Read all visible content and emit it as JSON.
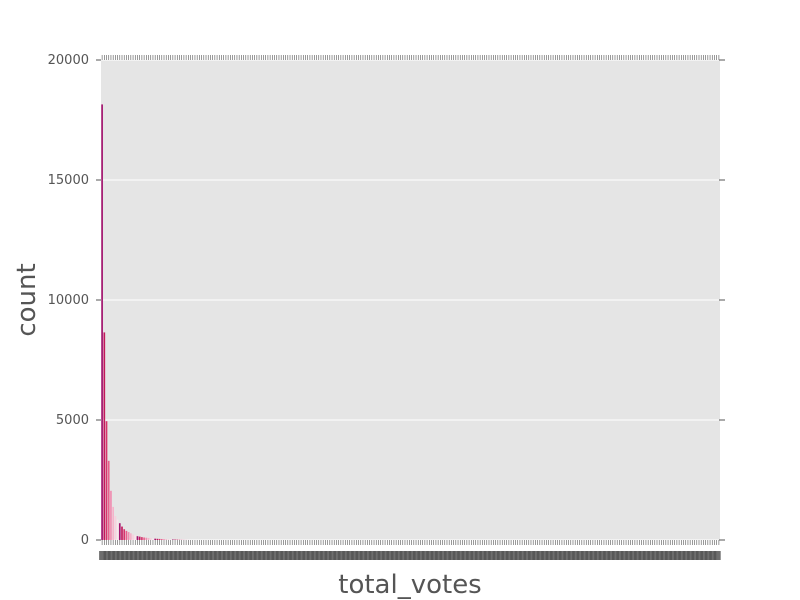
{
  "chart_data": {
    "type": "bar",
    "title": "",
    "xlabel": "total_votes",
    "ylabel": "count",
    "ylim": [
      0,
      20000
    ],
    "yticks": [
      0,
      5000,
      10000,
      15000,
      20000
    ],
    "grid": true,
    "x_tick_labels_note": "dense overlapping integer tick labels, largely illegible",
    "bar_count": 280,
    "series": [
      {
        "values": [
          18150,
          8650,
          4950,
          3300,
          2050,
          1380,
          1000,
          850,
          700,
          560,
          450,
          380,
          330,
          280,
          230,
          190,
          160,
          140,
          120,
          105,
          95,
          85,
          75,
          65,
          55,
          50,
          45,
          40,
          35,
          30,
          27,
          24,
          21,
          19,
          17,
          15,
          13,
          11,
          10,
          9
        ]
      }
    ],
    "colors": {
      "plot_background": "#e5e5e5",
      "bar_palette": [
        "#a3126e",
        "#c2185b",
        "#d6336c",
        "#e85f8c",
        "#f08cb0",
        "#f5b2c9",
        "#f9cfdd",
        "#fbe3eb"
      ],
      "grid": "#ffffff",
      "text": "#555555"
    }
  }
}
